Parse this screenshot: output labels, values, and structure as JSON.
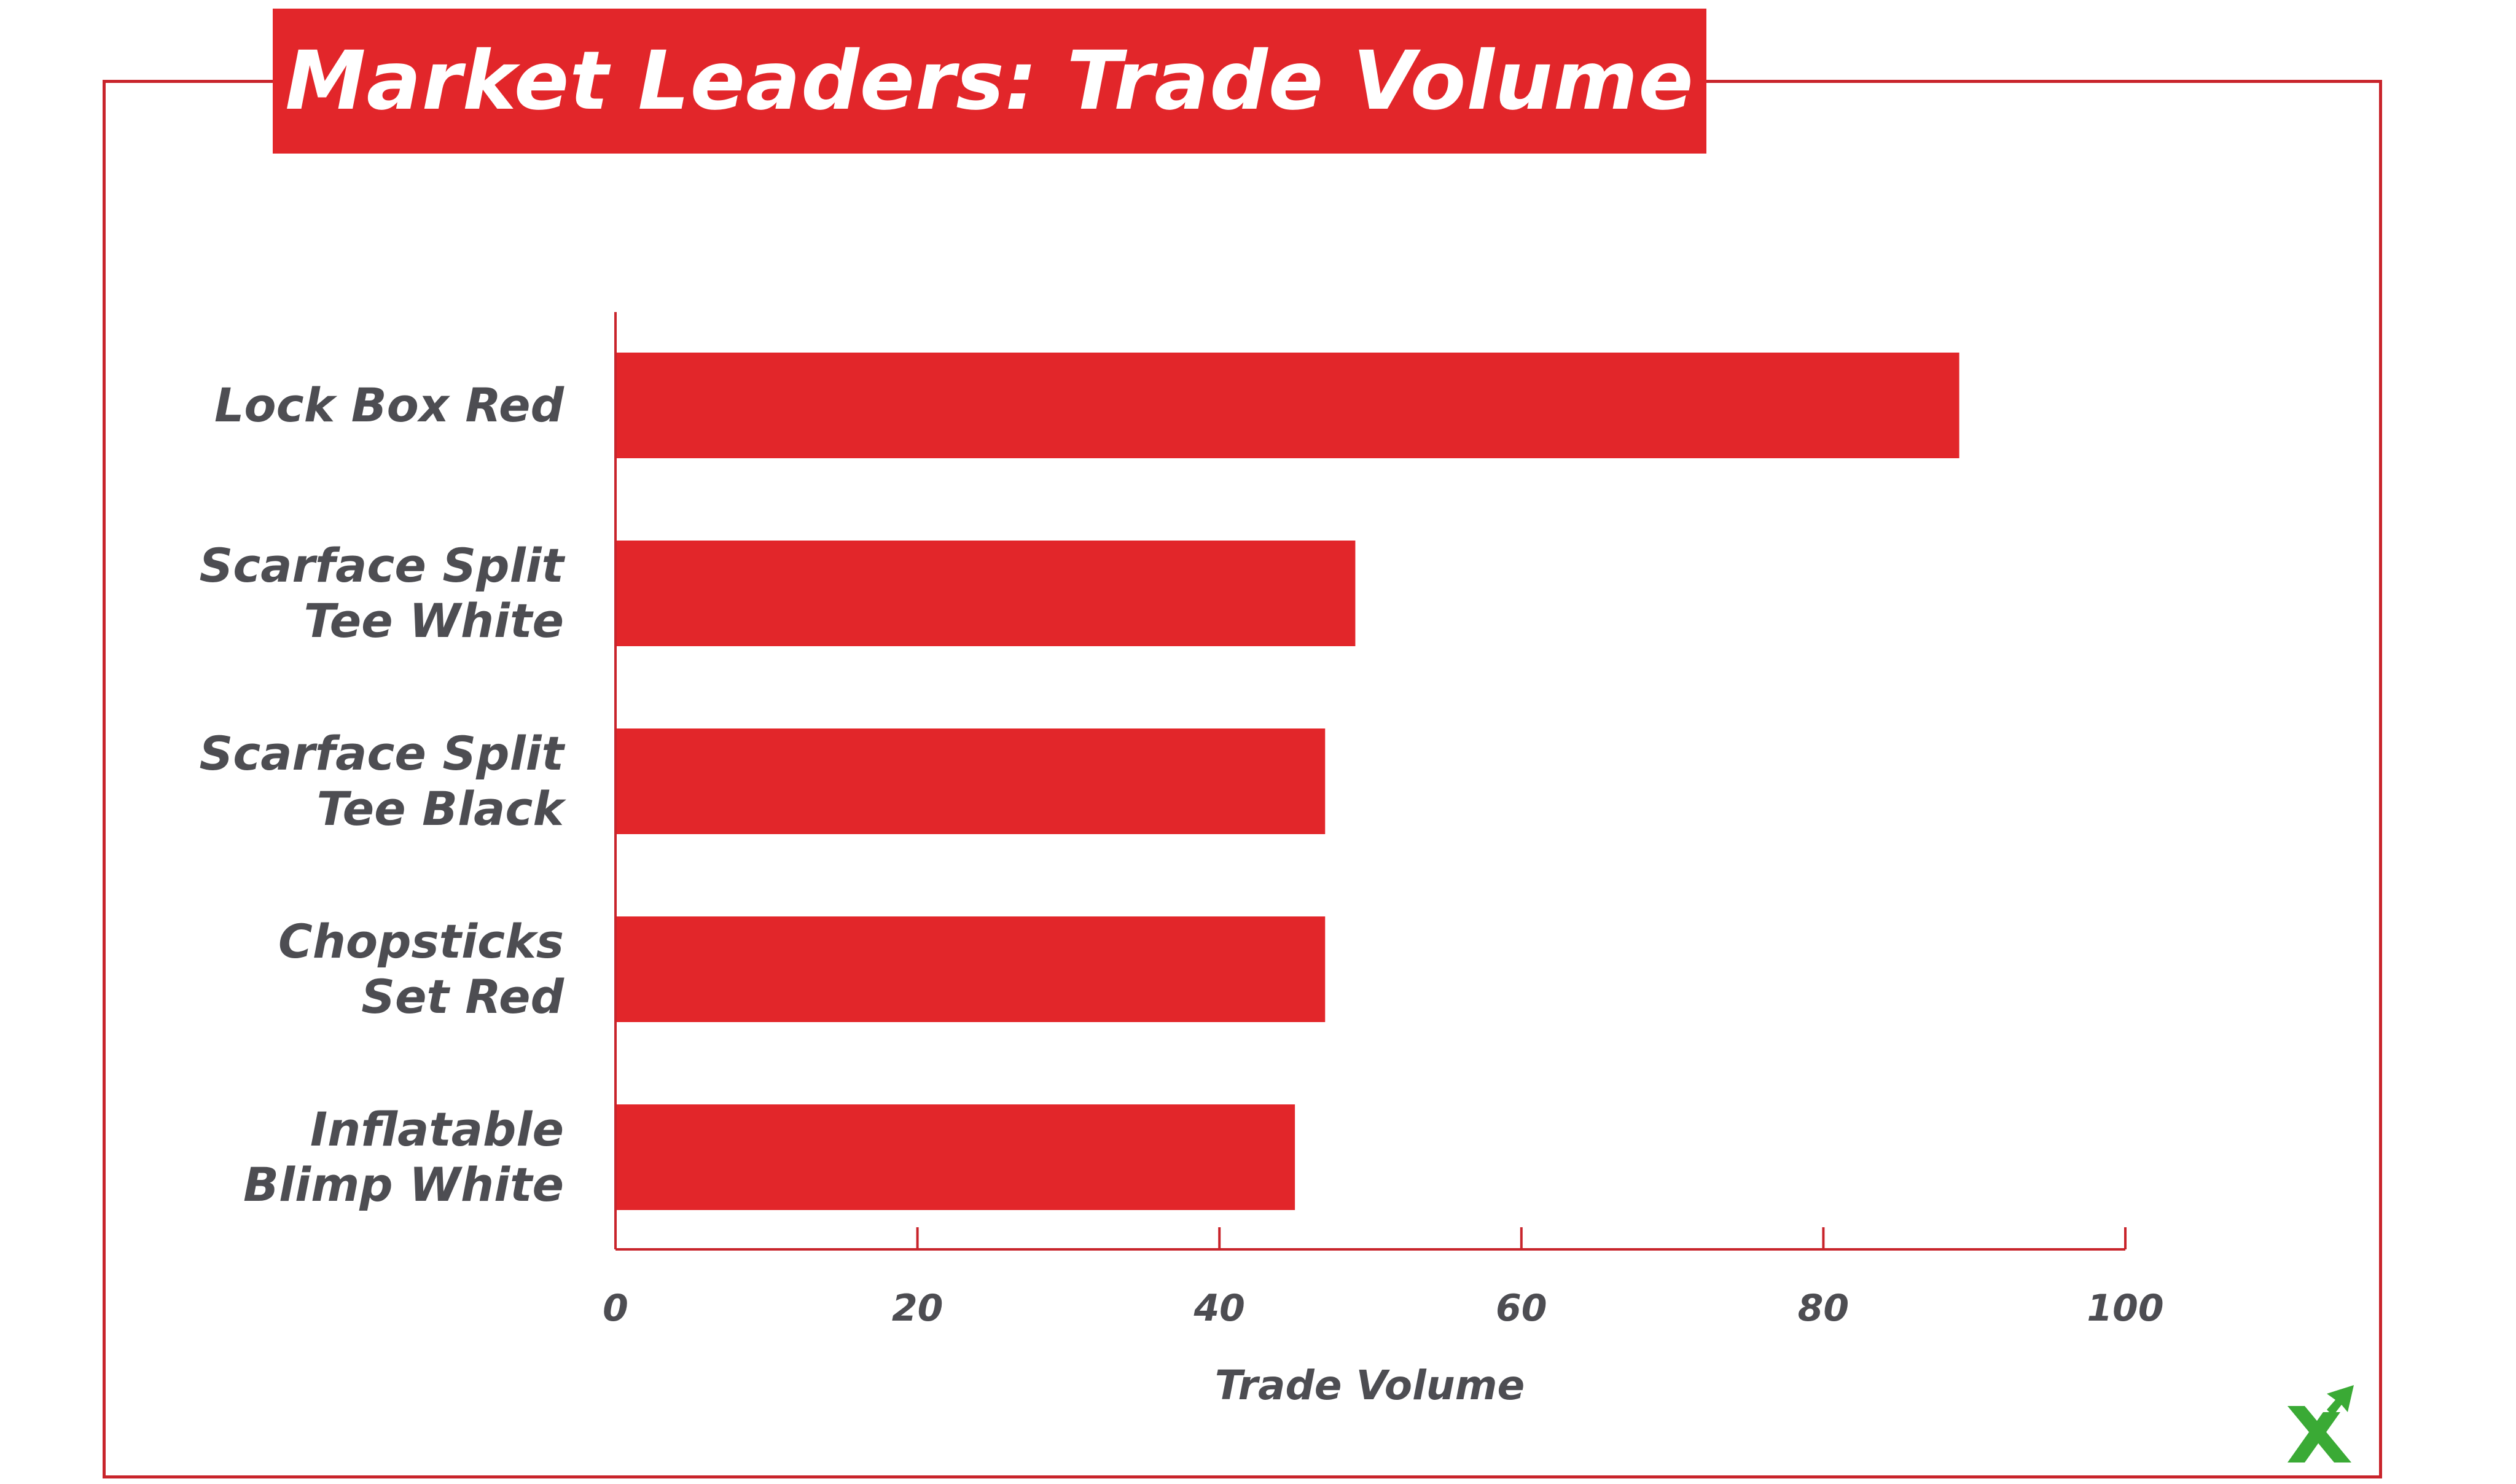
{
  "title": "Market Leaders: Trade Volume",
  "colors": {
    "bar": "#e2262a",
    "frame": "#c8242b",
    "axis": "#c8242b",
    "text": "#4d4d52",
    "logo": "#3aaa35"
  },
  "logo_icon": "green-x-arrow-logo",
  "chart_data": {
    "type": "bar",
    "orientation": "horizontal",
    "categories": [
      [
        "Lock Box Red"
      ],
      [
        "Scarface Split",
        "Tee White"
      ],
      [
        "Scarface Split",
        "Tee Black"
      ],
      [
        "Chopsticks",
        "Set Red"
      ],
      [
        "Inflatable",
        "Blimp White"
      ]
    ],
    "values": [
      89,
      49,
      47,
      47,
      45
    ],
    "xlabel": "Trade Volume",
    "ylabel": "",
    "xlim": [
      0,
      100
    ],
    "xticks": [
      "0",
      "20",
      "40",
      "60",
      "80",
      "100"
    ],
    "grid": false,
    "legend": "none"
  }
}
